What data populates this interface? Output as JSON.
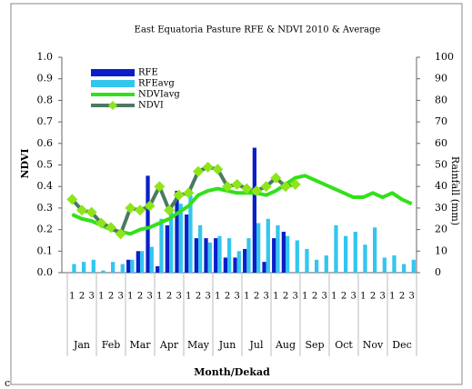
{
  "chart_data": {
    "type": "combo",
    "title": "East Equatoria Pasture RFE & NDVI 2010 & Average",
    "x_label": "Month/Dekad",
    "y_label": "NDVI",
    "y2_label": "Rainfall (mm)",
    "corner_text": "c",
    "categories": [
      "1",
      "2",
      "3",
      "1",
      "2",
      "3",
      "1",
      "2",
      "3",
      "1",
      "2",
      "3",
      "1",
      "2",
      "3",
      "1",
      "2",
      "3",
      "1",
      "2",
      "3",
      "1",
      "2",
      "3",
      "1",
      "2",
      "3",
      "1",
      "2",
      "3",
      "1",
      "2",
      "3",
      "1",
      "2",
      "3"
    ],
    "months": [
      "Jan",
      "Feb",
      "Mar",
      "Apr",
      "May",
      "Jun",
      "Jul",
      "Aug",
      "Sep",
      "Oct",
      "Nov",
      "Dec"
    ],
    "ylim": [
      0,
      1
    ],
    "yticks": [
      {
        "value": 0,
        "label": "0.0"
      },
      0.1,
      0.2,
      0.3,
      0.4,
      0.5,
      0.6,
      0.7,
      0.8,
      0.9,
      {
        "value": 1,
        "label": "1.0"
      }
    ],
    "y2lim": [
      0,
      100
    ],
    "y2ticks": [
      0,
      10,
      20,
      30,
      40,
      50,
      60,
      70,
      80,
      90,
      100
    ],
    "legend": "top-left",
    "series": [
      {
        "name": "RFE",
        "kind": "bar",
        "axis": "y2",
        "color": "#0a1fc8",
        "values": [
          0,
          0,
          0,
          0,
          0,
          0,
          6,
          10,
          45,
          3,
          22,
          38,
          27,
          16,
          16,
          16,
          7,
          7,
          11,
          58,
          5,
          16,
          19,
          null,
          null,
          null,
          null,
          null,
          null,
          null,
          null,
          null,
          null,
          null,
          null,
          null
        ]
      },
      {
        "name": "RFEavg",
        "kind": "bar",
        "axis": "y2",
        "color": "#33c6ee",
        "values": [
          4,
          5,
          6,
          1,
          5,
          4,
          6,
          10,
          12,
          25,
          30,
          32,
          36,
          22,
          14,
          17,
          16,
          10,
          16,
          23,
          25,
          22,
          17,
          15,
          11,
          6,
          8,
          22,
          17,
          19,
          13,
          21,
          7,
          8,
          4,
          6
        ]
      },
      {
        "name": "NDVIavg",
        "kind": "line",
        "color": "#33e01a",
        "values": [
          0.27,
          0.25,
          0.24,
          0.22,
          0.2,
          0.19,
          0.18,
          0.2,
          0.21,
          0.23,
          0.25,
          0.28,
          0.31,
          0.36,
          0.38,
          0.39,
          0.38,
          0.37,
          0.37,
          0.37,
          0.36,
          0.38,
          0.41,
          0.44,
          0.45,
          0.43,
          0.41,
          0.39,
          0.37,
          0.35,
          0.35,
          0.37,
          0.35,
          0.37,
          0.34,
          0.32
        ]
      },
      {
        "name": "NDVI",
        "kind": "line-marker",
        "color": "#4a7a62",
        "marker_color": "#8ee51a",
        "values": [
          0.34,
          0.29,
          0.28,
          0.23,
          0.21,
          0.18,
          0.3,
          0.29,
          0.31,
          0.4,
          0.29,
          0.36,
          0.37,
          0.47,
          0.49,
          0.48,
          0.4,
          0.41,
          0.39,
          0.38,
          0.4,
          0.44,
          0.4,
          0.41,
          null,
          null,
          null,
          null,
          null,
          null,
          null,
          null,
          null,
          null,
          null,
          null
        ]
      }
    ]
  }
}
